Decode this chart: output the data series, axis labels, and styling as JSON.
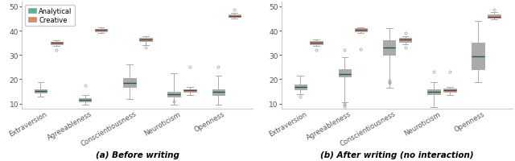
{
  "subplot_titles": [
    "(a) Before writing",
    "(b) After writing (no interaction)"
  ],
  "categories": [
    "Extraversion",
    "Agreeableness",
    "Conscientiousness",
    "Neuroticism",
    "Openness"
  ],
  "ylim": [
    8,
    52
  ],
  "yticks": [
    10,
    20,
    30,
    40,
    50
  ],
  "analytical_color": "#52b694",
  "creative_color": "#e8865a",
  "analytical_label": "Analytical",
  "creative_label": "Creative",
  "before": {
    "analytical": {
      "Extraversion": {
        "whislo": 13.0,
        "q1": 14.5,
        "med": 15.2,
        "q3": 16.0,
        "whishi": 19.0,
        "fliers": []
      },
      "Agreeableness": {
        "whislo": 9.5,
        "q1": 10.8,
        "med": 11.5,
        "q3": 12.3,
        "whishi": 13.5,
        "fliers": [
          17.5
        ]
      },
      "Conscientiousness": {
        "whislo": 12.0,
        "q1": 17.0,
        "med": 18.5,
        "q3": 20.5,
        "whishi": 26.0,
        "fliers": []
      },
      "Neuroticism": {
        "whislo": 9.5,
        "q1": 13.0,
        "med": 14.0,
        "q3": 15.0,
        "whishi": 22.5,
        "fliers": [
          11.0
        ]
      },
      "Openness": {
        "whislo": 9.5,
        "q1": 13.5,
        "med": 15.0,
        "q3": 16.0,
        "whishi": 21.5,
        "fliers": [
          25.0
        ]
      }
    },
    "creative": {
      "Extraversion": {
        "whislo": 33.8,
        "q1": 34.5,
        "med": 35.0,
        "q3": 35.5,
        "whishi": 36.0,
        "fliers": [
          32.0
        ]
      },
      "Agreeableness": {
        "whislo": 39.0,
        "q1": 39.8,
        "med": 40.3,
        "q3": 40.8,
        "whishi": 41.5,
        "fliers": []
      },
      "Conscientiousness": {
        "whislo": 34.0,
        "q1": 35.8,
        "med": 36.5,
        "q3": 37.0,
        "whishi": 37.8,
        "fliers": [
          33.0
        ]
      },
      "Neuroticism": {
        "whislo": 13.5,
        "q1": 14.8,
        "med": 15.5,
        "q3": 16.0,
        "whishi": 17.0,
        "fliers": [
          25.0
        ]
      },
      "Openness": {
        "whislo": 45.0,
        "q1": 45.5,
        "med": 46.0,
        "q3": 46.5,
        "whishi": 47.2,
        "fliers": [
          48.5
        ]
      }
    }
  },
  "after": {
    "analytical": {
      "Extraversion": {
        "whislo": 14.0,
        "q1": 16.0,
        "med": 17.0,
        "q3": 18.0,
        "whishi": 21.5,
        "fliers": [
          13.0
        ]
      },
      "Agreeableness": {
        "whislo": 10.5,
        "q1": 21.0,
        "med": 22.0,
        "q3": 24.0,
        "whishi": 29.0,
        "fliers": [
          9.0,
          9.5,
          10.0,
          32.0
        ]
      },
      "Conscientiousness": {
        "whislo": 16.5,
        "q1": 30.0,
        "med": 33.0,
        "q3": 36.0,
        "whishi": 41.0,
        "fliers": [
          18.5,
          19.0,
          19.5
        ]
      },
      "Neuroticism": {
        "whislo": 8.5,
        "q1": 14.0,
        "med": 15.0,
        "q3": 16.0,
        "whishi": 19.0,
        "fliers": [
          23.0
        ]
      },
      "Openness": {
        "whislo": 19.0,
        "q1": 24.0,
        "med": 29.5,
        "q3": 35.0,
        "whishi": 44.0,
        "fliers": []
      }
    },
    "creative": {
      "Extraversion": {
        "whislo": 33.8,
        "q1": 34.5,
        "med": 35.2,
        "q3": 35.8,
        "whishi": 36.3,
        "fliers": [
          32.0
        ]
      },
      "Agreeableness": {
        "whislo": 39.0,
        "q1": 39.8,
        "med": 40.5,
        "q3": 41.0,
        "whishi": 41.5,
        "fliers": [
          32.5
        ]
      },
      "Conscientiousness": {
        "whislo": 34.5,
        "q1": 35.5,
        "med": 36.5,
        "q3": 37.0,
        "whishi": 37.8,
        "fliers": [
          39.0,
          33.0
        ]
      },
      "Neuroticism": {
        "whislo": 13.5,
        "q1": 14.8,
        "med": 15.5,
        "q3": 16.2,
        "whishi": 17.0,
        "fliers": [
          23.0
        ]
      },
      "Openness": {
        "whislo": 44.5,
        "q1": 45.2,
        "med": 45.8,
        "q3": 46.5,
        "whishi": 47.5,
        "fliers": [
          48.5
        ]
      }
    }
  }
}
